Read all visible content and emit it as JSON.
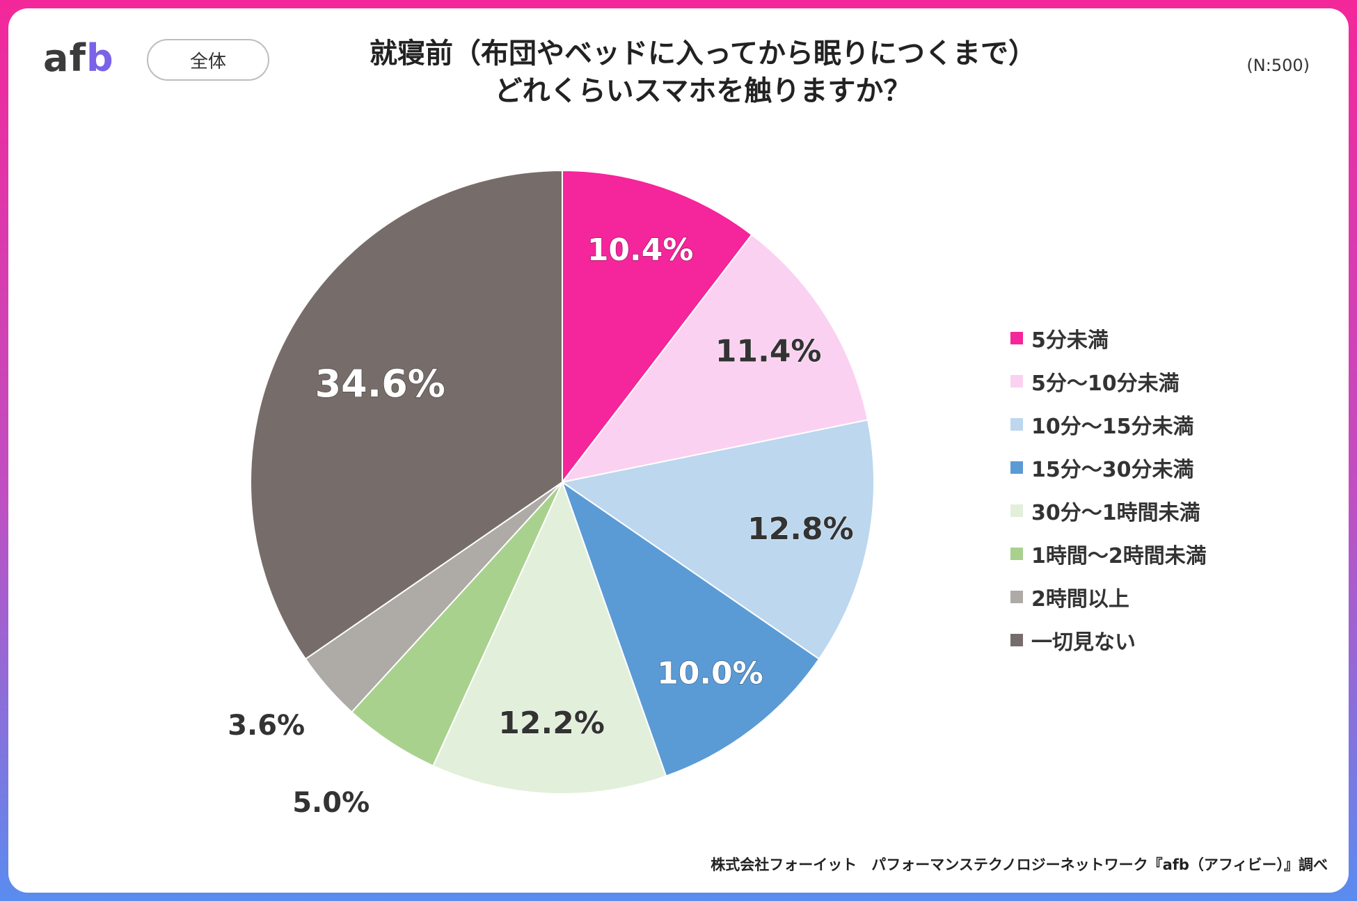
{
  "logo": {
    "text_main": "af",
    "text_accent": "b"
  },
  "segment_label": "全体",
  "title_line1": "就寝前（布団やベッドに入ってから眠りにつくまで）",
  "title_line2": "どれくらいスマホを触りますか？",
  "sample_size": "(N:500)",
  "source": "株式会社フォーイット　パフォーマンステクノロジーネットワーク『afb（アフィビー）』調べ",
  "chart_data": {
    "type": "pie",
    "title": "就寝前（布団やベッドに入ってから眠りにつくまで）どれくらいスマホを触りますか？",
    "categories": [
      "5分未満",
      "5分～10分未満",
      "10分～15分未満",
      "15分～30分未満",
      "30分～1時間未満",
      "1時間～2時間未満",
      "2時間以上",
      "一切見ない"
    ],
    "values": [
      10.4,
      11.4,
      12.8,
      10.0,
      12.2,
      5.0,
      3.6,
      34.6
    ],
    "labels": [
      "10.4%",
      "11.4%",
      "12.8%",
      "10.0%",
      "12.2%",
      "5.0%",
      "3.6%",
      "34.6%"
    ],
    "colors": [
      "#f5259b",
      "#fbd1f1",
      "#bcd7ee",
      "#5b9bd5",
      "#e2efda",
      "#a9d18e",
      "#aeaaa6",
      "#766d6b"
    ],
    "label_colors": [
      "#ffffff",
      "#333333",
      "#333333",
      "#ffffff",
      "#333333",
      "#333333",
      "#333333",
      "#ffffff"
    ],
    "label_placement": [
      "inside",
      "inside",
      "inside",
      "inside",
      "inside",
      "outside",
      "outside",
      "inside"
    ],
    "start_angle": "12 o'clock",
    "direction": "clockwise",
    "legend_position": "right"
  }
}
